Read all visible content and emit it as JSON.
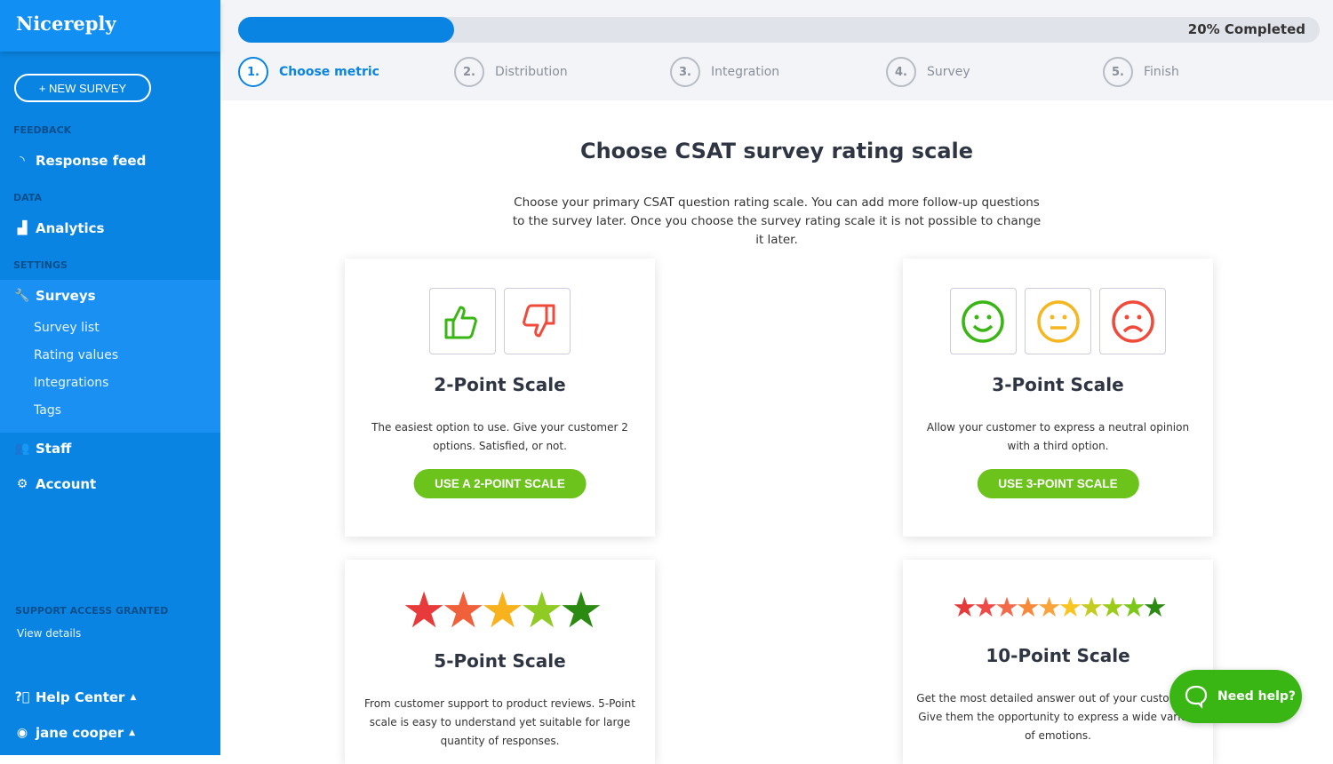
{
  "sidebar": {
    "logo": "Nicereply",
    "new_survey": "+ NEW SURVEY",
    "sections": {
      "feedback": "FEEDBACK",
      "data": "DATA",
      "settings": "SETTINGS"
    },
    "items": {
      "response_feed": "Response feed",
      "analytics": "Analytics",
      "surveys": "Surveys",
      "staff": "Staff",
      "account": "Account"
    },
    "sub_items": [
      "Survey list",
      "Rating values",
      "Integrations",
      "Tags"
    ],
    "support": "SUPPORT ACCESS GRANTED",
    "view_details": "View details",
    "help_center": "Help Center",
    "user": "jane cooper"
  },
  "progress": {
    "percent": 20,
    "label": "20% Completed"
  },
  "steps": [
    {
      "num": "1.",
      "label": "Choose metric"
    },
    {
      "num": "2.",
      "label": "Distribution"
    },
    {
      "num": "3.",
      "label": "Integration"
    },
    {
      "num": "4.",
      "label": "Survey"
    },
    {
      "num": "5.",
      "label": "Finish"
    }
  ],
  "main": {
    "title": "Choose CSAT survey rating scale",
    "intro": "Choose your primary CSAT question rating scale. You can add more follow-up questions to the survey later. Once you choose the survey rating scale it is not possible to change it later."
  },
  "cards": [
    {
      "title": "2-Point Scale",
      "desc": "The easiest option to use. Give your customer 2 options. Satisfied, or not.",
      "button": "USE A 2-POINT SCALE"
    },
    {
      "title": "3-Point Scale",
      "desc": "Allow your customer to express a neutral opinion with a third option.",
      "button": "USE 3-POINT SCALE"
    },
    {
      "title": "5-Point Scale",
      "desc": "From customer support to product reviews. 5-Point scale is easy to understand yet suitable for large quantity of responses."
    },
    {
      "title": "10-Point Scale",
      "desc": "Get the most detailed answer out of your customers. Give them the opportunity to express a wide variety of emotions."
    }
  ],
  "colors": {
    "brand": "#0a84e2",
    "accent_green": "#6cc31c",
    "help_green": "#3ab614"
  },
  "help_button": "Need help?"
}
